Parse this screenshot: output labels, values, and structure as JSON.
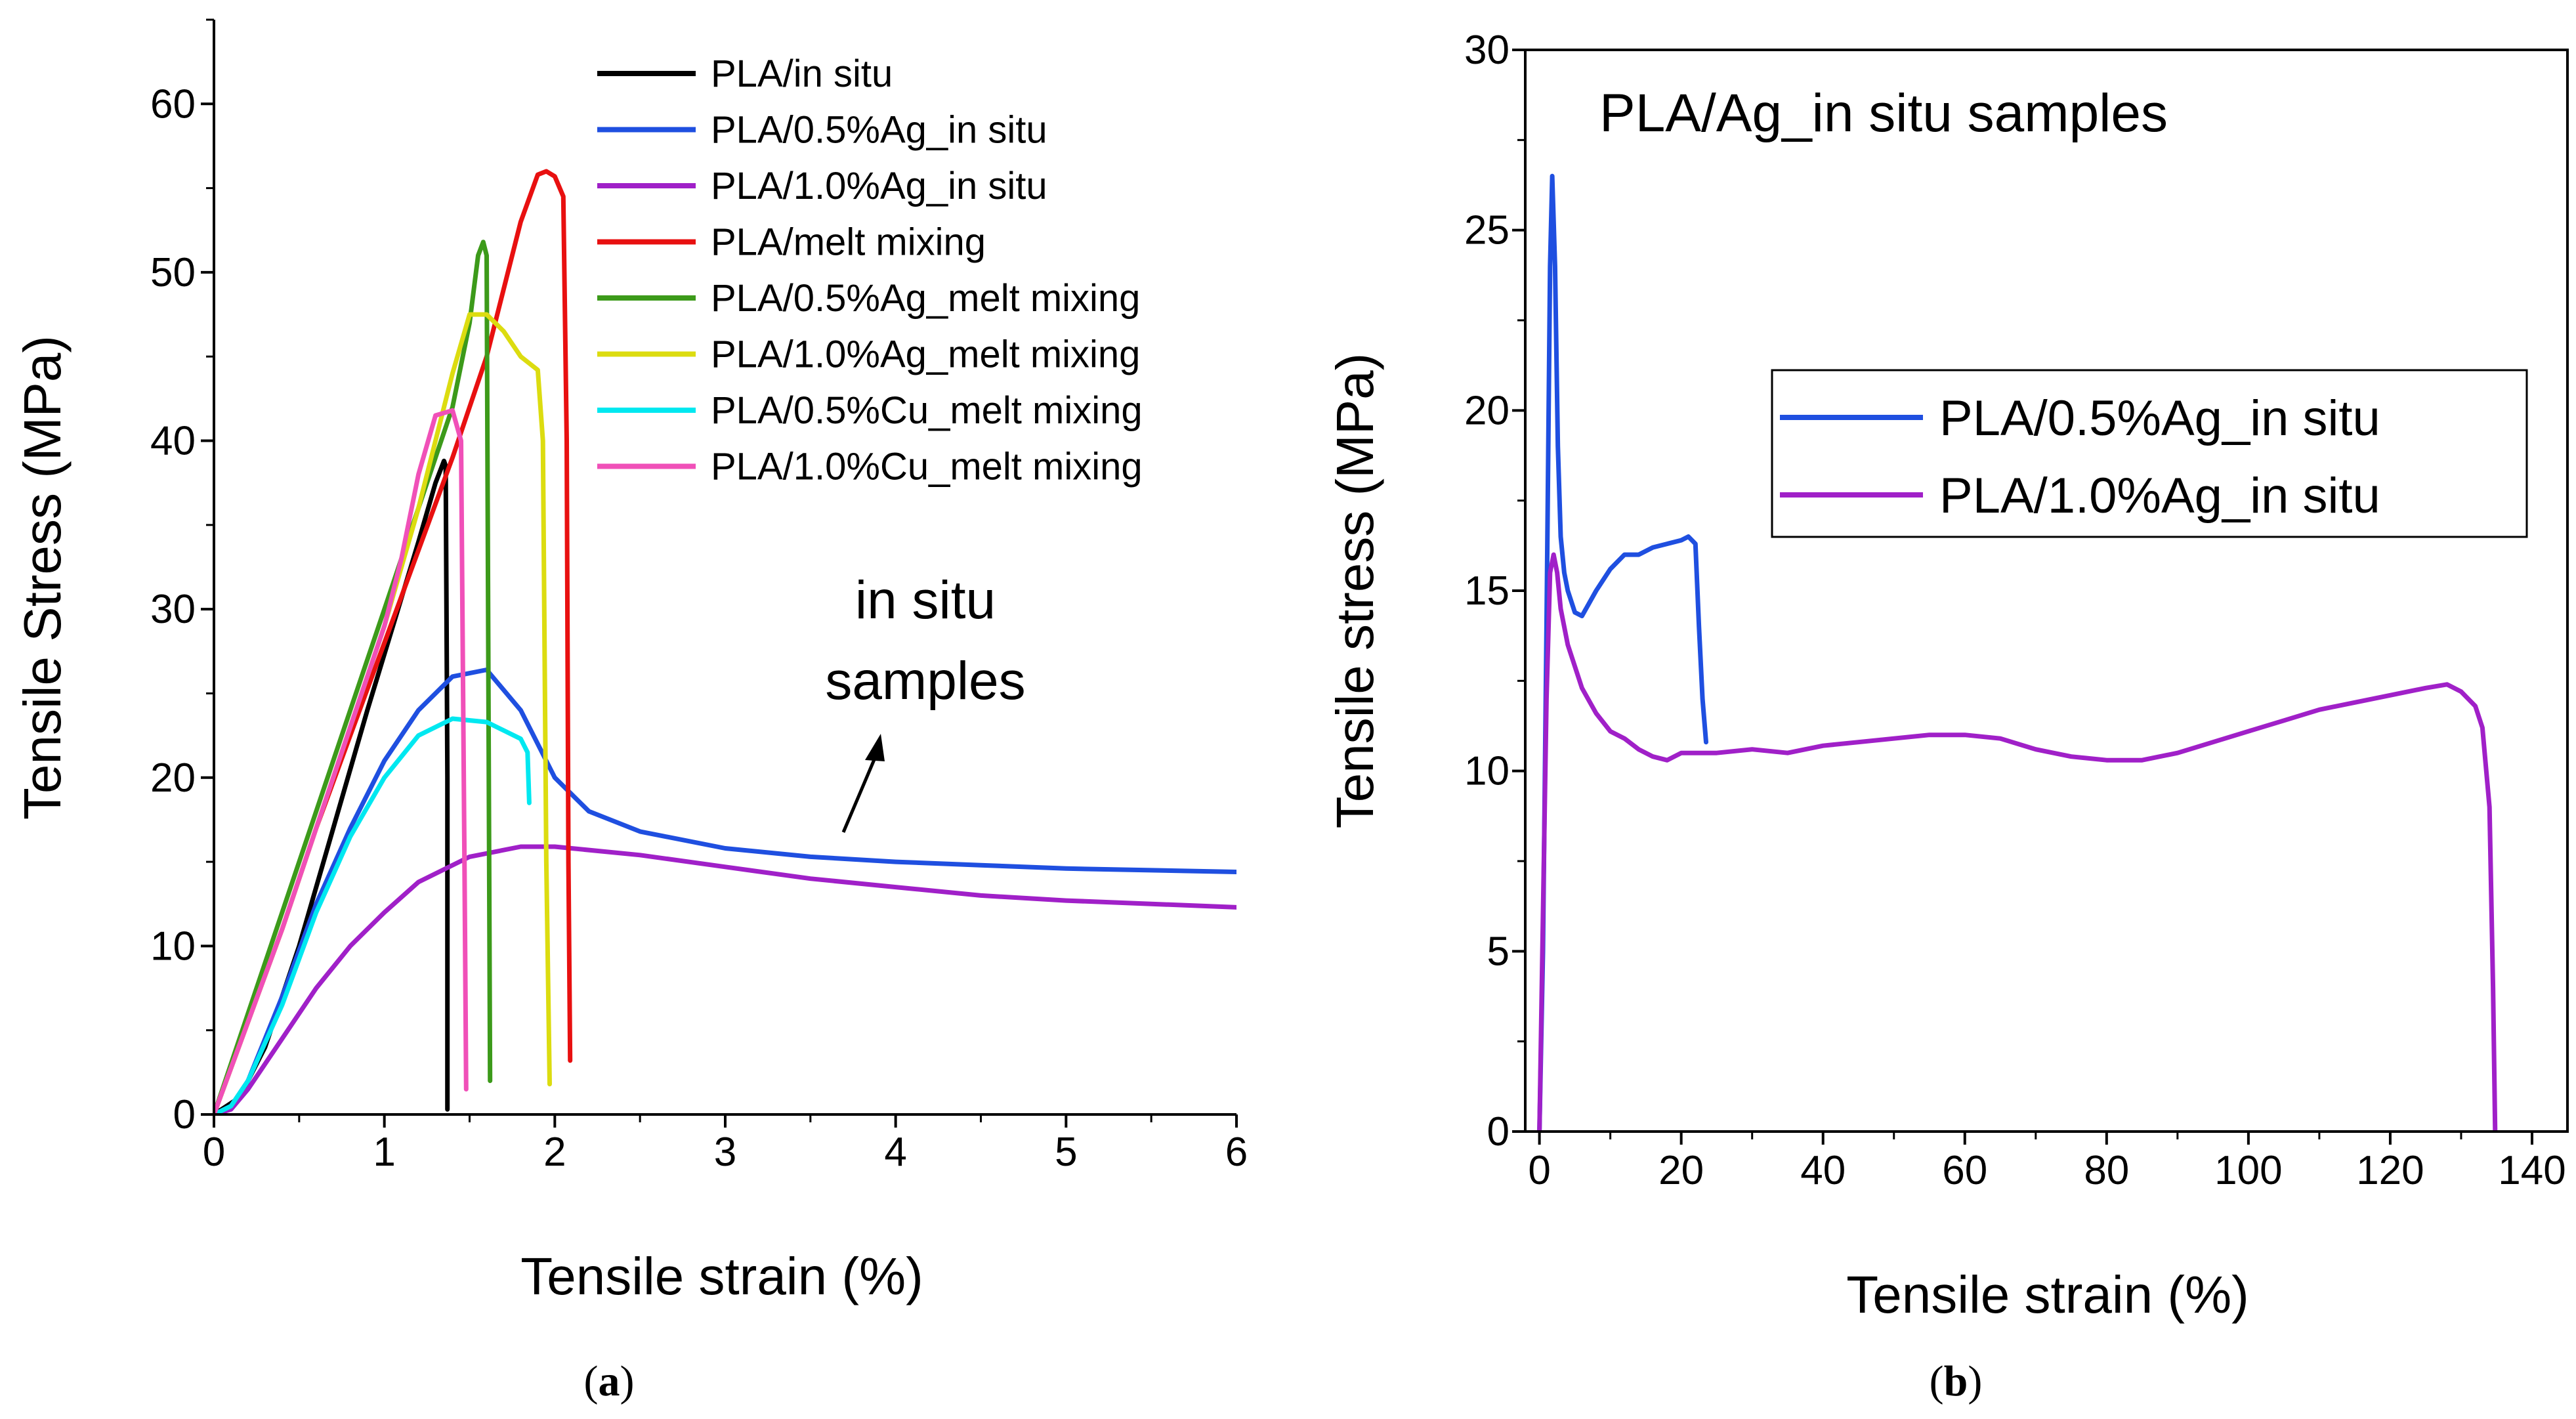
{
  "chart_data": [
    {
      "type": "line",
      "panel_label": "(a)",
      "panel_letter": "a",
      "xlabel": "Tensile strain (%)",
      "ylabel": "Tensile Stress (MPa)",
      "xlim": [
        0,
        6
      ],
      "ylim": [
        0,
        65
      ],
      "xticks": [
        0,
        1,
        2,
        3,
        4,
        5,
        6
      ],
      "yticks": [
        0,
        10,
        20,
        30,
        40,
        50,
        60
      ],
      "grid": false,
      "legend_position": "top-center",
      "annotation": {
        "lines": [
          "in situ",
          "samples"
        ]
      },
      "series": [
        {
          "name": "PLA/in situ",
          "color": "#000000",
          "x": [
            0,
            0.15,
            0.3,
            0.5,
            0.7,
            0.9,
            1.05,
            1.2,
            1.3,
            1.35,
            1.36,
            1.37,
            1.37
          ],
          "y": [
            0,
            1,
            4,
            10,
            17,
            24,
            29,
            34,
            37.5,
            38.8,
            38.5,
            20,
            0.3
          ]
        },
        {
          "name": "PLA/0.5%Ag_in situ",
          "color": "#1f4fe0",
          "x": [
            0,
            0.1,
            0.2,
            0.4,
            0.6,
            0.8,
            1.0,
            1.2,
            1.4,
            1.6,
            1.8,
            2.0,
            2.2,
            2.5,
            3.0,
            3.5,
            4.0,
            4.5,
            5.0,
            5.5,
            6.0
          ],
          "y": [
            0,
            0.5,
            2,
            7,
            12.5,
            17,
            21,
            24,
            26,
            26.4,
            24,
            20,
            18,
            16.8,
            15.8,
            15.3,
            15.0,
            14.8,
            14.6,
            14.5,
            14.4
          ]
        },
        {
          "name": "PLA/1.0%Ag_in situ",
          "color": "#a020c8",
          "x": [
            0,
            0.1,
            0.2,
            0.4,
            0.6,
            0.8,
            1.0,
            1.2,
            1.5,
            1.8,
            2.0,
            2.5,
            3.0,
            3.5,
            4.0,
            4.5,
            5.0,
            5.5,
            6.0
          ],
          "y": [
            0,
            0.3,
            1.5,
            4.5,
            7.5,
            10,
            12,
            13.8,
            15.3,
            15.9,
            15.9,
            15.4,
            14.7,
            14.0,
            13.5,
            13.0,
            12.7,
            12.5,
            12.3
          ]
        },
        {
          "name": "PLA/melt mixing",
          "color": "#e81010",
          "x": [
            0,
            0.2,
            0.4,
            0.6,
            0.8,
            1.0,
            1.2,
            1.4,
            1.6,
            1.7,
            1.8,
            1.9,
            1.95,
            2.0,
            2.05,
            2.07,
            2.08,
            2.09
          ],
          "y": [
            0,
            5.5,
            11,
            17,
            22.5,
            28,
            33.5,
            39,
            45,
            49,
            53,
            55.8,
            56,
            55.7,
            54.5,
            40,
            15,
            3.2
          ]
        },
        {
          "name": "PLA/0.5%Ag_melt mixing",
          "color": "#3c9a1a",
          "x": [
            0,
            0.2,
            0.4,
            0.6,
            0.8,
            1.0,
            1.2,
            1.4,
            1.5,
            1.55,
            1.58,
            1.6,
            1.62
          ],
          "y": [
            0,
            6,
            12,
            18,
            24,
            30,
            36,
            42,
            47,
            51,
            51.8,
            51,
            2
          ]
        },
        {
          "name": "PLA/1.0%Ag_melt mixing",
          "color": "#dcdc10",
          "x": [
            0,
            0.2,
            0.4,
            0.6,
            0.8,
            1.0,
            1.2,
            1.4,
            1.5,
            1.6,
            1.7,
            1.8,
            1.9,
            1.93,
            1.95,
            1.97
          ],
          "y": [
            0,
            5.5,
            11,
            17,
            23,
            29,
            36,
            44,
            47.5,
            47.5,
            46.5,
            45,
            44.2,
            40,
            15,
            1.8
          ]
        },
        {
          "name": "PLA/0.5%Cu_melt mixing",
          "color": "#00e8f0",
          "x": [
            0,
            0.1,
            0.2,
            0.4,
            0.6,
            0.8,
            1.0,
            1.2,
            1.4,
            1.6,
            1.7,
            1.8,
            1.84,
            1.85
          ],
          "y": [
            0,
            0.5,
            2,
            6.5,
            12,
            16.5,
            20,
            22.5,
            23.5,
            23.3,
            22.8,
            22.3,
            21.5,
            18.5
          ]
        },
        {
          "name": "PLA/1.0%Cu_melt mixing",
          "color": "#f050b8",
          "x": [
            0,
            0.2,
            0.4,
            0.6,
            0.8,
            1.0,
            1.1,
            1.2,
            1.3,
            1.4,
            1.45,
            1.47,
            1.48
          ],
          "y": [
            0,
            5.5,
            11,
            17,
            23,
            29,
            33,
            38,
            41.5,
            41.8,
            40,
            15,
            1.5
          ]
        }
      ]
    },
    {
      "type": "line",
      "panel_label": "(b)",
      "panel_letter": "b",
      "title": "PLA/Ag_in situ samples",
      "xlabel": "Tensile strain (%)",
      "ylabel": "Tensile stress (MPa)",
      "xlim": [
        -2,
        145
      ],
      "ylim": [
        0,
        30
      ],
      "xticks": [
        0,
        20,
        40,
        60,
        80,
        100,
        120,
        140
      ],
      "yticks": [
        0,
        5,
        10,
        15,
        20,
        25,
        30
      ],
      "grid": false,
      "legend_position": "center-right",
      "series": [
        {
          "name": "PLA/0.5%Ag_in situ",
          "color": "#1f4fe0",
          "x": [
            0,
            0.5,
            1,
            1.5,
            1.8,
            2.2,
            2.6,
            3,
            3.5,
            4,
            5,
            6,
            8,
            10,
            12,
            14,
            16,
            18,
            20,
            21,
            22,
            22.5,
            23,
            23.5
          ],
          "y": [
            0,
            5,
            14,
            24,
            26.5,
            24,
            19,
            16.5,
            15.5,
            15,
            14.4,
            14.3,
            15,
            15.6,
            16,
            16,
            16.2,
            16.3,
            16.4,
            16.5,
            16.3,
            14,
            12,
            10.8
          ]
        },
        {
          "name": "PLA/1.0%Ag_in situ",
          "color": "#a020c8",
          "x": [
            0,
            0.5,
            1,
            1.5,
            2,
            2.5,
            3,
            4,
            6,
            8,
            10,
            12,
            14,
            16,
            18,
            20,
            25,
            30,
            35,
            40,
            45,
            50,
            55,
            60,
            65,
            70,
            75,
            80,
            85,
            90,
            95,
            100,
            105,
            110,
            115,
            120,
            125,
            128,
            130,
            132,
            133,
            134,
            134.5,
            134.8
          ],
          "y": [
            0,
            6,
            12,
            15.5,
            16,
            15.5,
            14.5,
            13.5,
            12.3,
            11.6,
            11.1,
            10.9,
            10.6,
            10.4,
            10.3,
            10.5,
            10.5,
            10.6,
            10.5,
            10.7,
            10.8,
            10.9,
            11.0,
            11.0,
            10.9,
            10.6,
            10.4,
            10.3,
            10.3,
            10.5,
            10.8,
            11.1,
            11.4,
            11.7,
            11.9,
            12.1,
            12.3,
            12.4,
            12.2,
            11.8,
            11.2,
            9,
            4,
            0
          ]
        }
      ]
    }
  ]
}
